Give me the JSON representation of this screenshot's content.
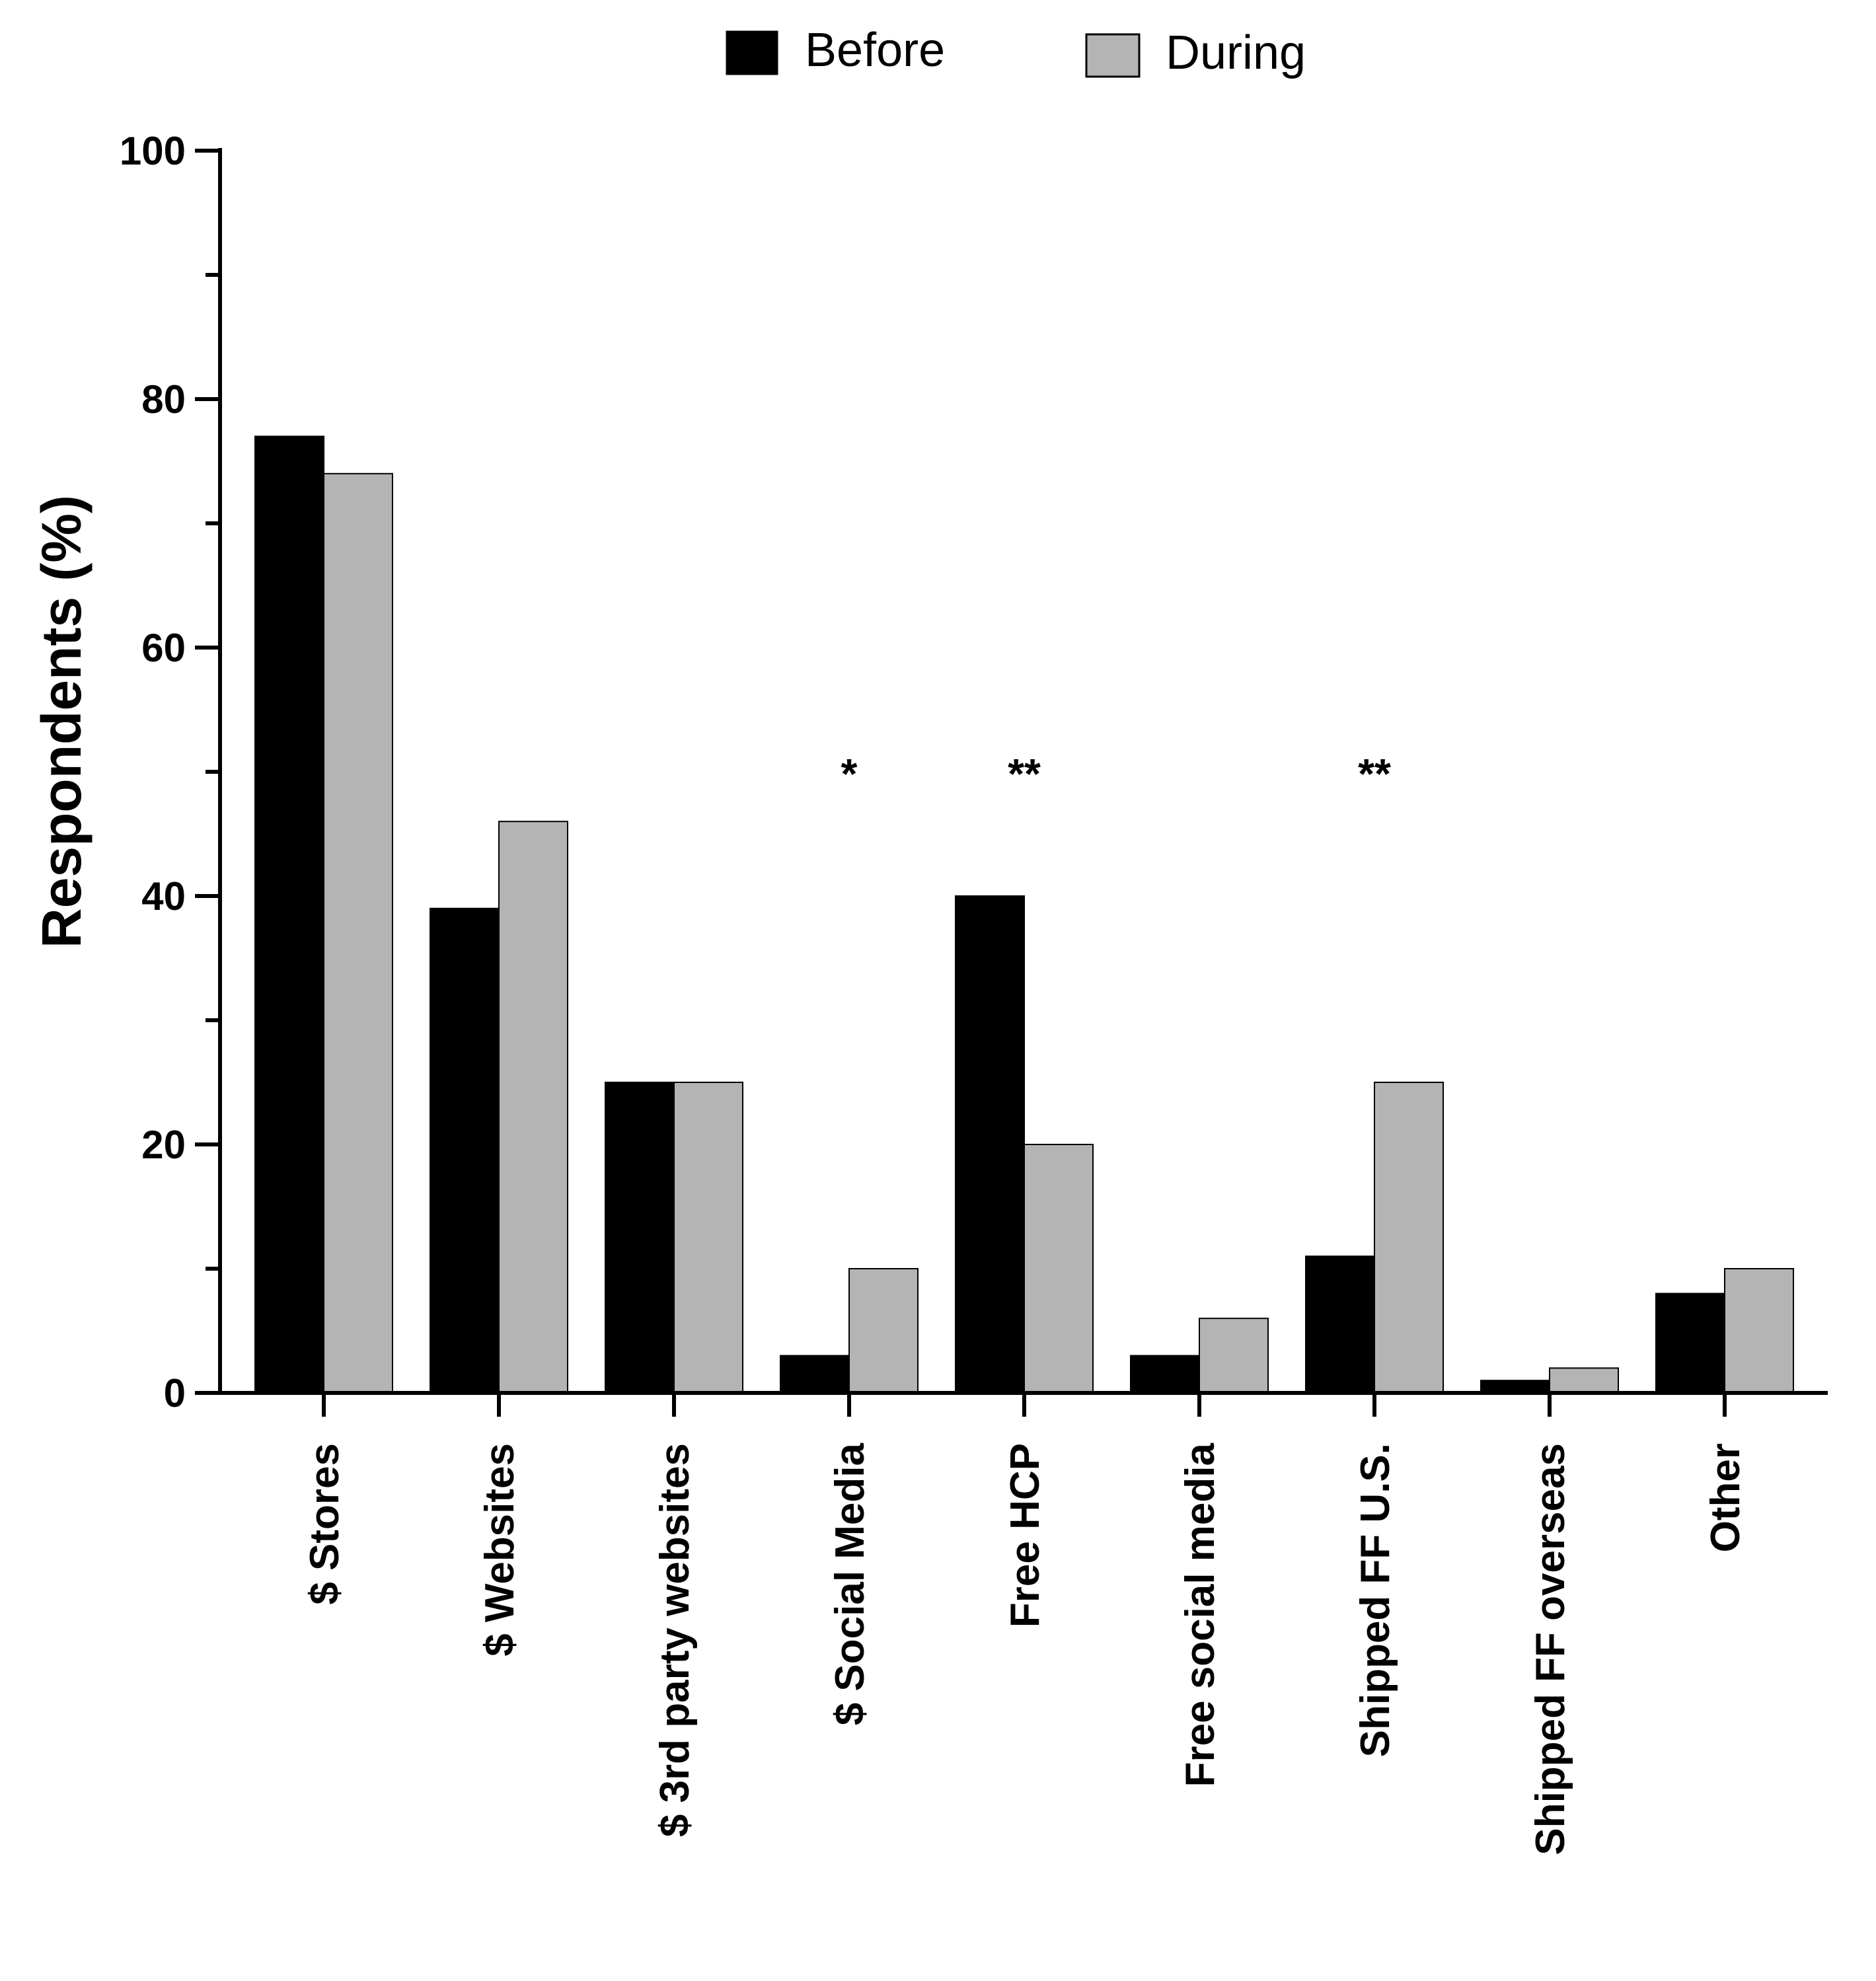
{
  "chart_data": {
    "type": "bar",
    "title": "",
    "xlabel": "",
    "ylabel": "Respondents (%)",
    "ylim": [
      0,
      100
    ],
    "yticks": [
      0,
      20,
      40,
      60,
      80,
      100
    ],
    "legend_position": "top-center",
    "categories": [
      "$ Stores",
      "$ Websites",
      "$ 3rd party websites",
      "$ Social Media",
      "Free HCP",
      "Free social media",
      "Shipped FF U.S.",
      "Shipped FF overseas",
      "Other"
    ],
    "series": [
      {
        "name": "Before",
        "color": "#000000",
        "values": [
          77,
          39,
          25,
          3,
          40,
          3,
          11,
          1,
          8
        ]
      },
      {
        "name": "During",
        "color": "#b4b4b4",
        "values": [
          74,
          46,
          25,
          10,
          20,
          6,
          25,
          2,
          10
        ]
      }
    ],
    "annotations": [
      {
        "category": "$ Social Media",
        "text": "*",
        "y": 51
      },
      {
        "category": "Free HCP",
        "text": "**",
        "y": 51
      },
      {
        "category": "Shipped FF U.S.",
        "text": "**",
        "y": 51
      }
    ]
  }
}
